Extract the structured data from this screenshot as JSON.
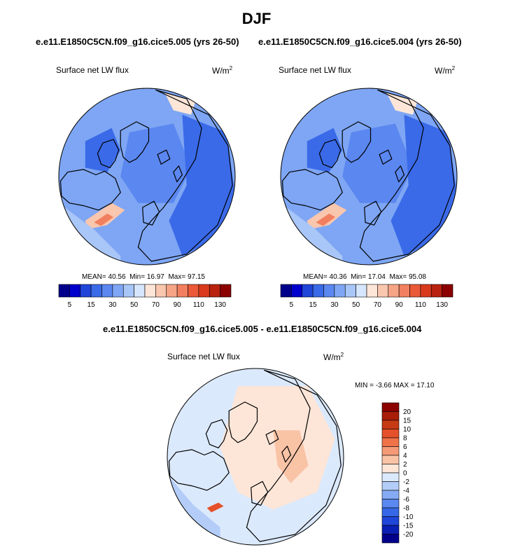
{
  "title": "DJF",
  "top_subtitle_left": "e.e11.E1850C5CN.f09_g16.cice5.005 (yrs 26-50)",
  "top_subtitle_right": "e.e11.E1850C5CN.f09_g16.cice5.004 (yrs 26-50)",
  "diff_title": "e.e11.E1850C5CN.f09_g16.cice5.005 - e.e11.E1850C5CN.f09_g16.cice5.004",
  "colors": {
    "abs_scale": [
      "#00008b",
      "#0000cd",
      "#1f45d9",
      "#3a6ae8",
      "#5b87f0",
      "#7ea6f4",
      "#a9c6f8",
      "#d6e6fc",
      "#fde6d8",
      "#f9c6ae",
      "#f6a486",
      "#f28060",
      "#ea5a38",
      "#d93a1c",
      "#b8220e",
      "#8b0000"
    ],
    "diff_scale": [
      "#00008b",
      "#0a1fb4",
      "#1f45d9",
      "#3567e6",
      "#5b87f0",
      "#86abf4",
      "#b3cdf8",
      "#dbe9fc",
      "#fde6d8",
      "#f9c3a6",
      "#f59a76",
      "#f07248",
      "#e5512a",
      "#c73a16",
      "#a81e08",
      "#8b0000"
    ],
    "coast": "#000000"
  },
  "chart_data": [
    {
      "type": "heatmap",
      "projection": "north-polar-stereographic",
      "variable": "Surface net LW flux",
      "units": "W/m2",
      "case": "e.e11.E1850C5CN.f09_g16.cice5.005 (yrs 26-50)",
      "stats": {
        "MEAN": "40.56",
        "Min": "16.97",
        "Max": "97.15"
      },
      "stats_labels": {
        "mean": "MEAN=",
        "min": "Min=",
        "max": "Max="
      },
      "colorbar_ticks": [
        "5",
        "15",
        "30",
        "50",
        "70",
        "90",
        "110",
        "130"
      ]
    },
    {
      "type": "heatmap",
      "projection": "north-polar-stereographic",
      "variable": "Surface net LW flux",
      "units": "W/m2",
      "case": "e.e11.E1850C5CN.f09_g16.cice5.004 (yrs 26-50)",
      "stats": {
        "MEAN": "40.36",
        "Min": "17.04",
        "Max": "95.08"
      },
      "stats_labels": {
        "mean": "MEAN=",
        "min": "Min=",
        "max": "Max="
      },
      "colorbar_ticks": [
        "5",
        "15",
        "30",
        "50",
        "70",
        "90",
        "110",
        "130"
      ]
    },
    {
      "type": "heatmap",
      "projection": "north-polar-stereographic",
      "variable": "Surface net LW flux",
      "units": "W/m2",
      "case": "e.e11.E1850C5CN.f09_g16.cice5.005 - e.e11.E1850C5CN.f09_g16.cice5.004",
      "stats": {
        "MIN": "-3.66",
        "MAX": "17.10"
      },
      "stats_labels": {
        "min": "MIN =",
        "max": "MAX ="
      },
      "colorbar_ticks": [
        "20",
        "15",
        "10",
        "8",
        "6",
        "4",
        "2",
        "0",
        "-2",
        "-4",
        "-6",
        "-8",
        "-10",
        "-15",
        "-20"
      ]
    }
  ]
}
